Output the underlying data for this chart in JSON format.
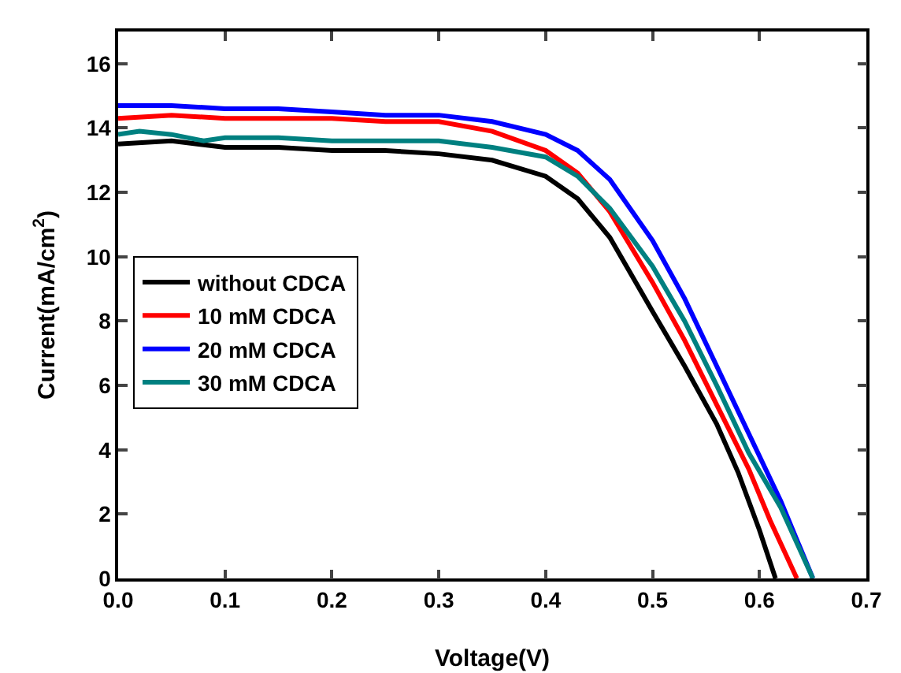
{
  "chart_data": {
    "type": "line",
    "xlabel": "Voltage(V)",
    "ylabel": "Current(mA/cm$^{2}$)",
    "xlim": [
      0,
      0.7
    ],
    "xticks": [
      {
        "value": 0,
        "label": "0.0"
      },
      0.1,
      0.2,
      0.3,
      0.4,
      0.5,
      0.6,
      0.7
    ],
    "ylim": [
      0,
      17
    ],
    "yticks": [
      0,
      2,
      4,
      6,
      8,
      10,
      12,
      14,
      16
    ],
    "grid": false,
    "legend": "left",
    "marker": "none",
    "line_style": "solid",
    "series": [
      {
        "name": "without CDCA",
        "color": "#000000",
        "x": [
          0,
          0.05,
          0.1,
          0.15,
          0.2,
          0.25,
          0.3,
          0.35,
          0.4,
          0.43,
          0.46,
          0.5,
          0.53,
          0.56,
          0.58,
          0.6,
          0.615
        ],
        "values": [
          13.5,
          13.6,
          13.4,
          13.4,
          13.3,
          13.3,
          13.2,
          13.0,
          12.5,
          11.8,
          10.6,
          8.3,
          6.6,
          4.8,
          3.3,
          1.5,
          0
        ]
      },
      {
        "name": "10 mM CDCA",
        "color": "#ff0000",
        "x": [
          0,
          0.05,
          0.1,
          0.15,
          0.2,
          0.25,
          0.3,
          0.35,
          0.4,
          0.43,
          0.46,
          0.5,
          0.53,
          0.56,
          0.59,
          0.61,
          0.635
        ],
        "values": [
          14.3,
          14.4,
          14.3,
          14.3,
          14.3,
          14.2,
          14.2,
          13.9,
          13.3,
          12.6,
          11.4,
          9.2,
          7.4,
          5.4,
          3.4,
          1.8,
          0
        ]
      },
      {
        "name": "20 mM CDCA",
        "color": "#0000ff",
        "x": [
          0,
          0.05,
          0.1,
          0.15,
          0.2,
          0.25,
          0.3,
          0.35,
          0.4,
          0.43,
          0.46,
          0.5,
          0.53,
          0.56,
          0.59,
          0.62,
          0.65
        ],
        "values": [
          14.7,
          14.7,
          14.6,
          14.6,
          14.5,
          14.4,
          14.4,
          14.2,
          13.8,
          13.3,
          12.4,
          10.5,
          8.7,
          6.6,
          4.5,
          2.4,
          0
        ]
      },
      {
        "name": "30 mM CDCA",
        "color": "#008080",
        "x": [
          0,
          0.02,
          0.05,
          0.08,
          0.1,
          0.15,
          0.2,
          0.25,
          0.3,
          0.35,
          0.4,
          0.43,
          0.46,
          0.5,
          0.53,
          0.56,
          0.59,
          0.62,
          0.65
        ],
        "values": [
          13.8,
          13.9,
          13.8,
          13.6,
          13.7,
          13.7,
          13.6,
          13.6,
          13.6,
          13.4,
          13.1,
          12.5,
          11.5,
          9.7,
          8.0,
          6.0,
          3.9,
          2.2,
          0
        ]
      }
    ]
  }
}
